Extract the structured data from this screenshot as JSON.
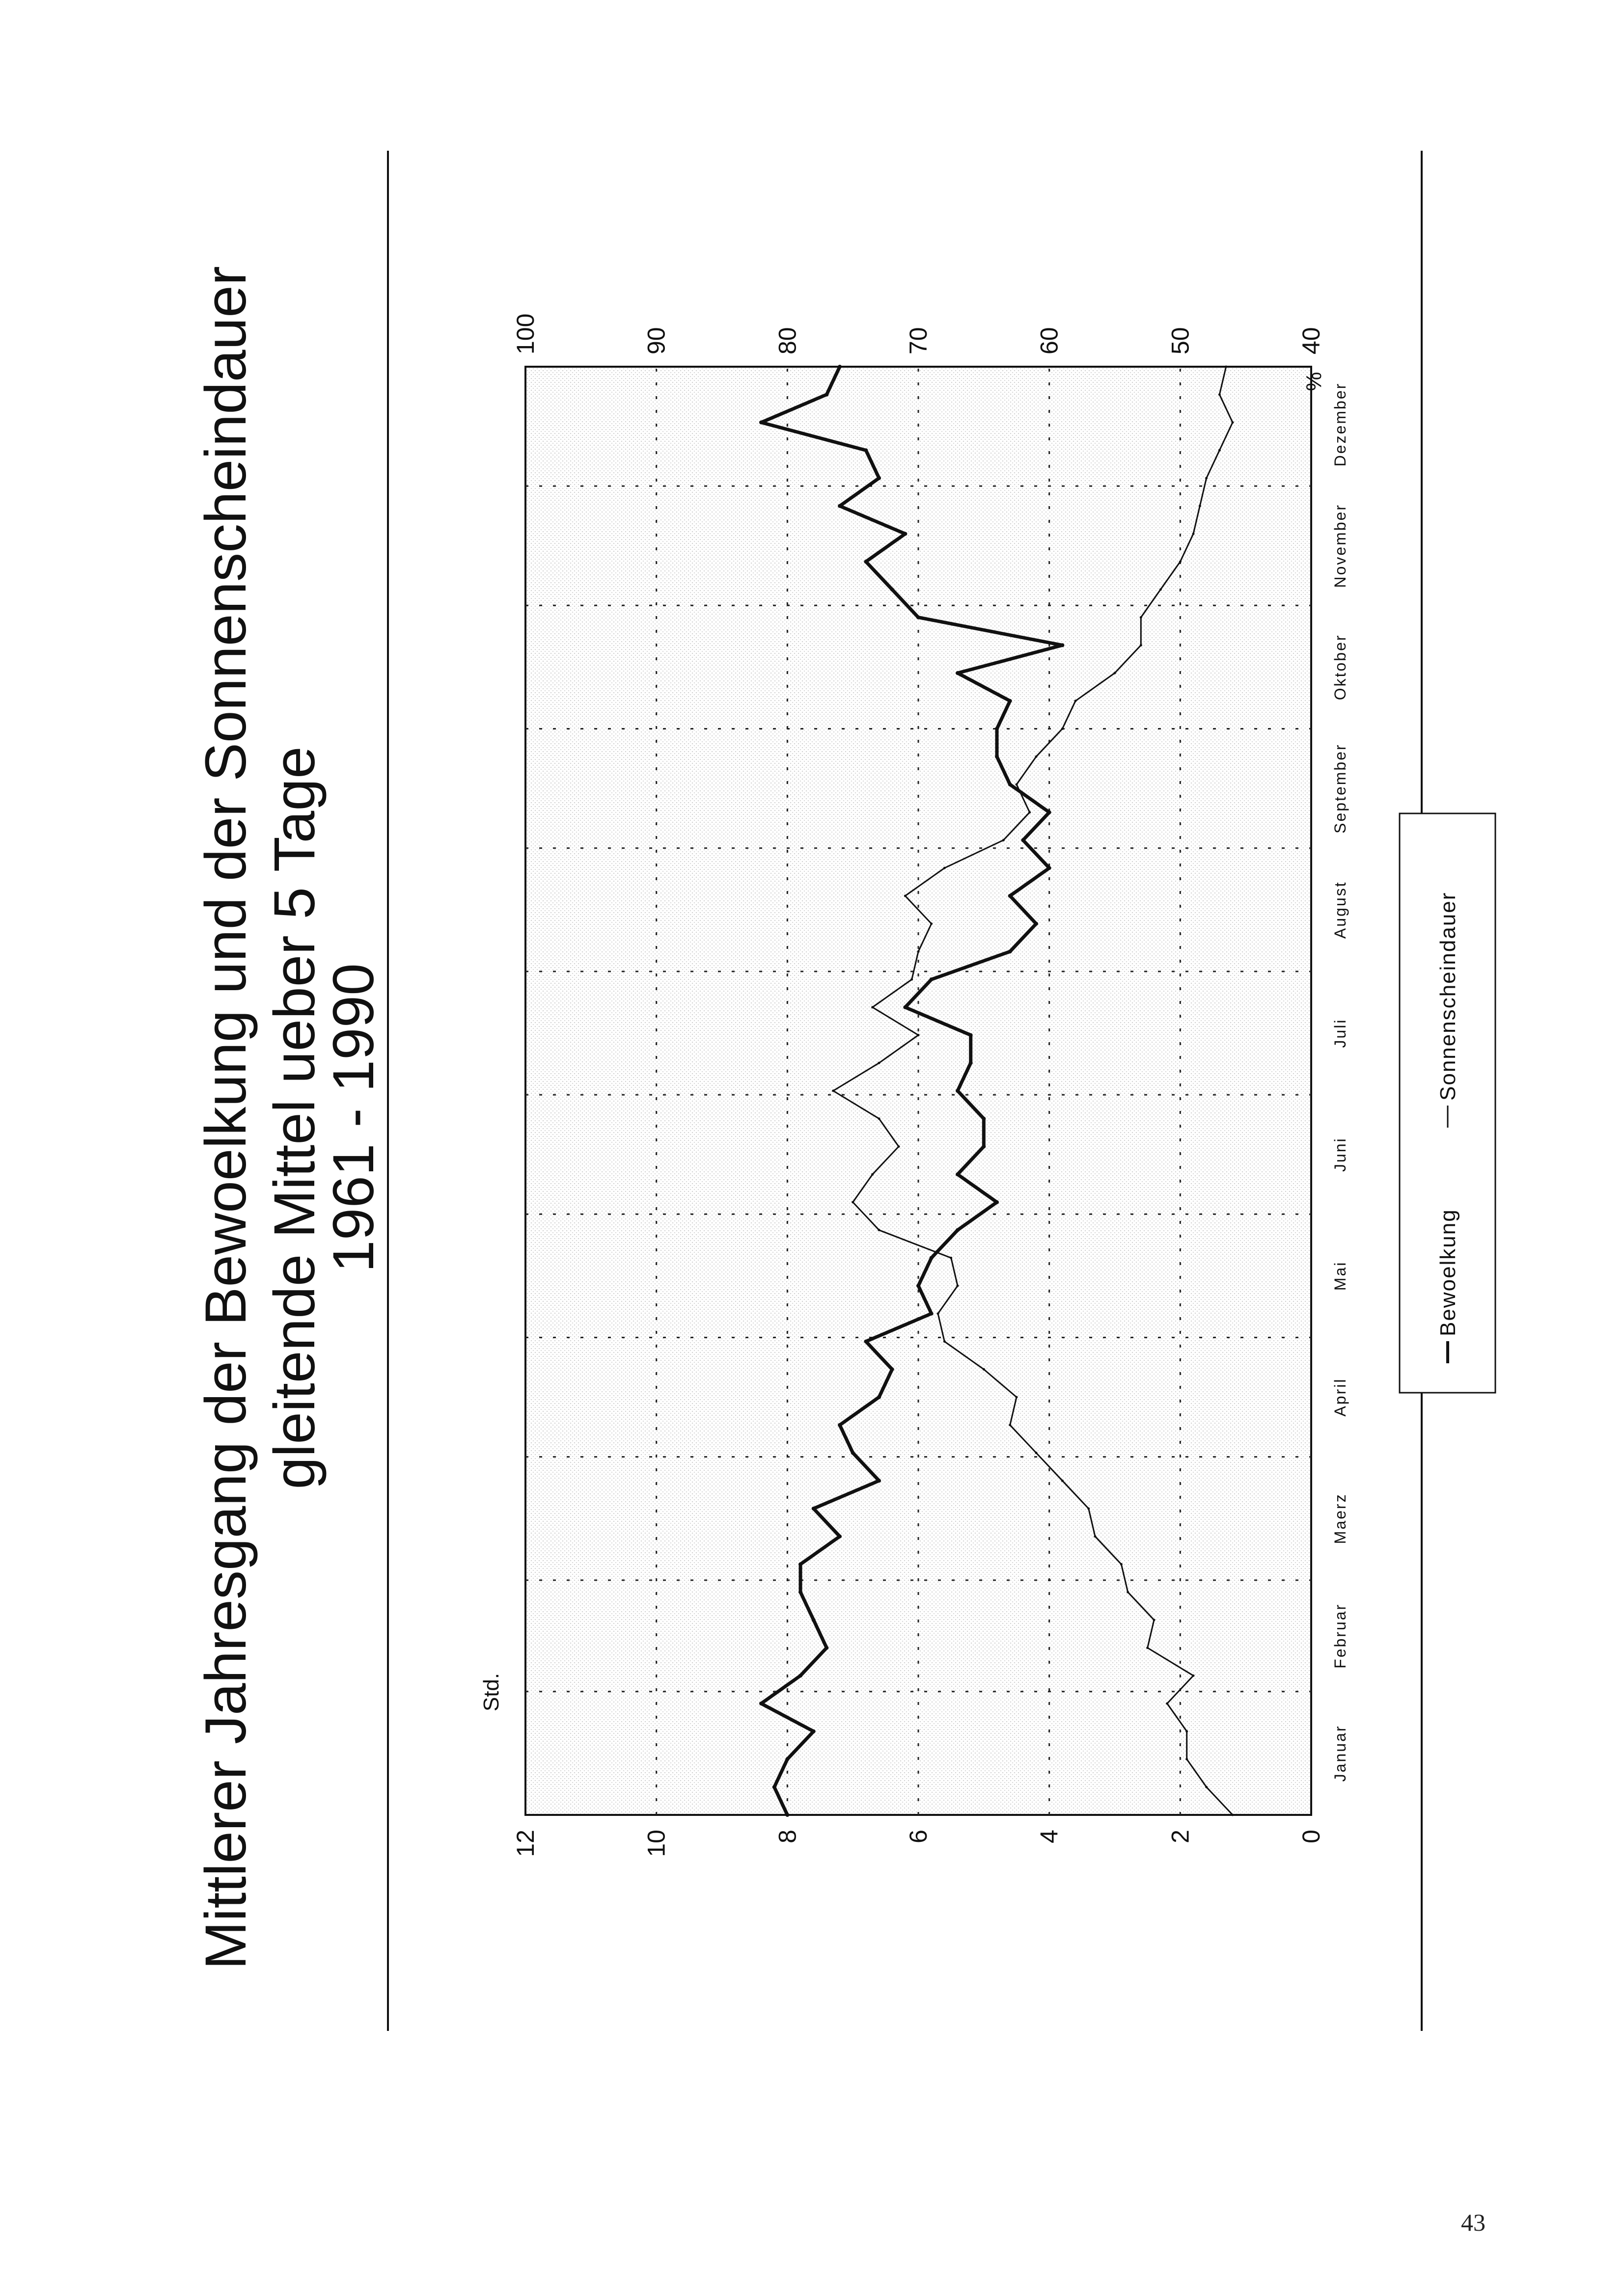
{
  "page": {
    "number": "43"
  },
  "chart_data": {
    "type": "line",
    "title_lines": [
      "Mittlerer Jahresgang der Bewoelkung und der Sonnenscheindauer",
      "gleitende Mittel ueber 5 Tage",
      "1961 - 1990"
    ],
    "left_axis": {
      "unit": "Std.",
      "ticks": [
        "0",
        "2",
        "4",
        "6",
        "8",
        "10",
        "12"
      ],
      "ylim": [
        0,
        12
      ]
    },
    "right_axis": {
      "unit": "%",
      "ticks": [
        "40",
        "50",
        "60",
        "70",
        "80",
        "90",
        "100"
      ],
      "ylim": [
        40,
        100
      ]
    },
    "months": [
      "Januar",
      "Februar",
      "Maerz",
      "April",
      "Mai",
      "Juni",
      "Juli",
      "August",
      "September",
      "Oktober",
      "November",
      "Dezember"
    ],
    "grid": "dotted",
    "legend": {
      "placement": "bottom",
      "entries": [
        "Bewoelkung",
        "Sonnenscheindauer"
      ]
    },
    "series": [
      {
        "name": "Bewoelkung",
        "axis": "right",
        "x_day": [
          1,
          8,
          15,
          22,
          29,
          36,
          43,
          50,
          57,
          64,
          71,
          78,
          85,
          92,
          99,
          106,
          113,
          120,
          127,
          134,
          141,
          148,
          155,
          162,
          169,
          176,
          183,
          190,
          197,
          204,
          211,
          218,
          225,
          232,
          239,
          246,
          253,
          260,
          267,
          274,
          281,
          288,
          295,
          302,
          309,
          316,
          323,
          330,
          337,
          344,
          351,
          358,
          365
        ],
        "values": [
          80,
          81,
          80,
          78,
          82,
          79,
          77,
          78,
          79,
          79,
          76,
          78,
          73,
          75,
          76,
          73,
          72,
          74,
          69,
          70,
          69,
          67,
          64,
          67,
          65,
          65,
          67,
          66,
          66,
          71,
          69,
          63,
          61,
          63,
          60,
          62,
          60,
          63,
          64,
          64,
          63,
          67,
          59,
          70,
          72,
          74,
          71,
          76,
          73,
          74,
          82,
          77,
          76
        ]
      },
      {
        "name": "Sonnenscheindauer",
        "axis": "left",
        "x_day": [
          1,
          8,
          15,
          22,
          29,
          36,
          43,
          50,
          57,
          64,
          71,
          78,
          85,
          92,
          99,
          106,
          113,
          120,
          127,
          134,
          141,
          148,
          155,
          162,
          169,
          176,
          183,
          190,
          197,
          204,
          211,
          218,
          225,
          232,
          239,
          246,
          253,
          260,
          267,
          274,
          281,
          288,
          295,
          302,
          309,
          316,
          323,
          330,
          337,
          344,
          351,
          358,
          365
        ],
        "values": [
          1.2,
          1.6,
          1.9,
          1.9,
          2.2,
          1.8,
          2.5,
          2.4,
          2.8,
          2.9,
          3.3,
          3.4,
          3.8,
          4.2,
          4.6,
          4.5,
          5.0,
          5.6,
          5.7,
          5.4,
          5.5,
          6.6,
          7.0,
          6.7,
          6.3,
          6.6,
          7.3,
          6.6,
          6.0,
          6.7,
          6.1,
          6.0,
          5.8,
          6.2,
          5.6,
          4.7,
          4.3,
          4.5,
          4.2,
          3.8,
          3.6,
          3.0,
          2.6,
          2.6,
          2.3,
          2.0,
          1.8,
          1.7,
          1.6,
          1.4,
          1.2,
          1.4,
          1.3
        ]
      }
    ]
  }
}
